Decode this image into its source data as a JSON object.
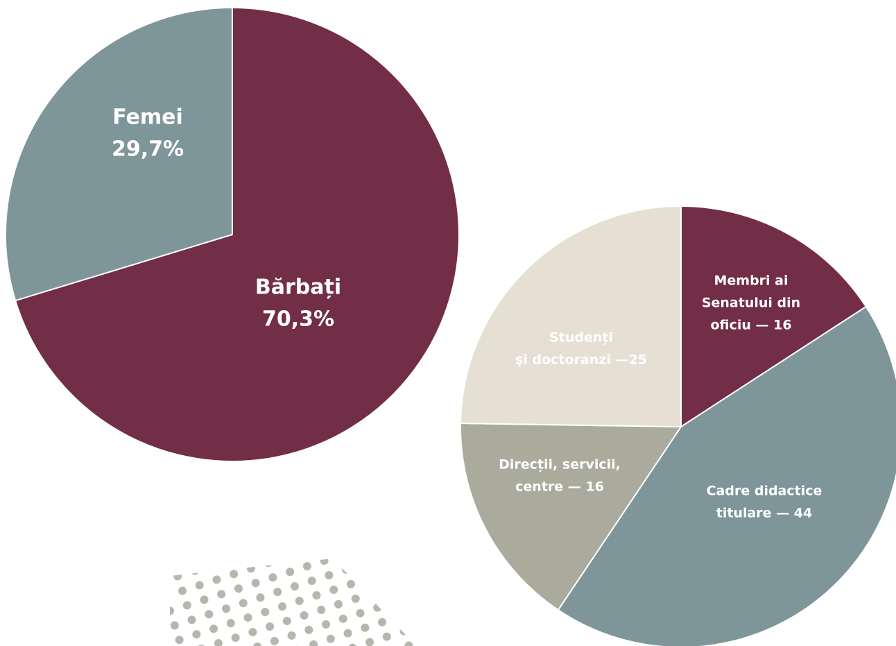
{
  "chart_data": [
    {
      "type": "pie",
      "categories": [
        "Bărbați",
        "Femei"
      ],
      "values": [
        70.3,
        29.7
      ],
      "value_labels": [
        "70,3%",
        "29,7%"
      ],
      "colors": [
        "#722d47",
        "#7e969a"
      ]
    },
    {
      "type": "pie",
      "categories": [
        [
          "Membri ai",
          "Senatului din",
          "oficiu — 16"
        ],
        [
          "Cadre didactice",
          "titulare — 44"
        ],
        [
          "Direcții, servicii,",
          "centre — 16"
        ],
        [
          "Studenți",
          "şi doctoranzi —25"
        ]
      ],
      "values": [
        16,
        44,
        16,
        25
      ],
      "colors": [
        "#722d47",
        "#7e969a",
        "#aaaa9d",
        "#e5e0d3"
      ]
    }
  ]
}
